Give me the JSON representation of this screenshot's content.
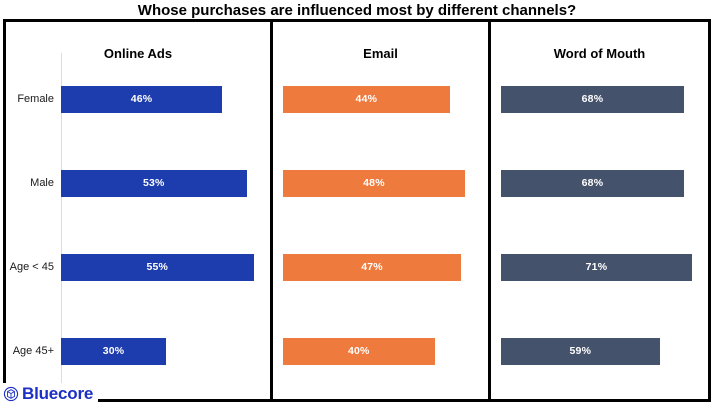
{
  "chart_data": {
    "type": "bar",
    "orientation": "horizontal",
    "layout": "small-multiples",
    "title": "Whose purchases are influenced most by different channels?",
    "categories": [
      "Female",
      "Male",
      "Age < 45",
      "Age 45+"
    ],
    "series": [
      {
        "name": "Online Ads",
        "values": [
          46,
          53,
          55,
          30
        ],
        "color": "#1d3cad",
        "axis_max": 58
      },
      {
        "name": "Email",
        "values": [
          44,
          48,
          47,
          40
        ],
        "color": "#ef7a3d",
        "axis_max": 52
      },
      {
        "name": "Word of Mouth",
        "values": [
          68,
          68,
          71,
          59
        ],
        "color": "#45526b",
        "axis_max": 74
      }
    ],
    "value_suffix": "%",
    "grid": false,
    "legend_position": "none"
  },
  "footer": {
    "brand": "Bluecore"
  },
  "colors": {
    "panel_border": "#000000",
    "axis_line": "#dcdcdc",
    "bar_label": "#ffffff",
    "brand_blue": "#1d2fc4"
  }
}
